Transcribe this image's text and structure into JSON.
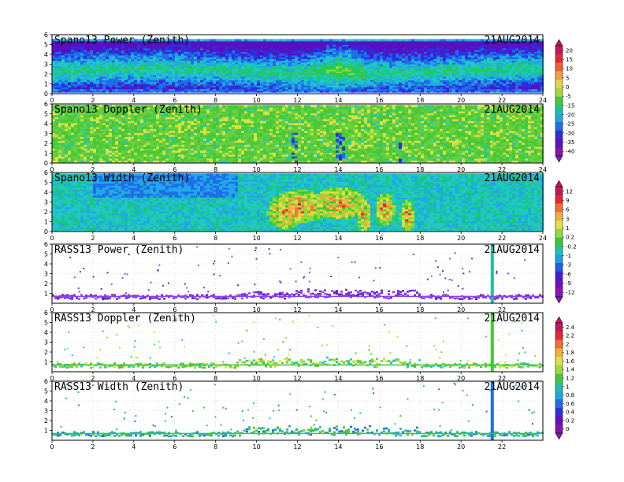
{
  "figure": {
    "date": "21AUG2014"
  },
  "chart_data": [
    {
      "type": "heatmap",
      "title": "Spano13 Power (Zenith)",
      "date_label": "21AUG2014",
      "x_ticks": [
        "0",
        "2",
        "4",
        "6",
        "8",
        "10",
        "12",
        "14",
        "16",
        "18",
        "20",
        "22",
        "24"
      ],
      "y_ticks": [
        "0",
        "1",
        "2",
        "3",
        "4",
        "5",
        "6"
      ],
      "xlim": [
        0,
        24
      ],
      "ylim": [
        0,
        6
      ],
      "colorbar": {
        "labels": [
          "20",
          "15",
          "10",
          "5",
          "0",
          "-5",
          "-15",
          "-20",
          "-25",
          "-30",
          "-35",
          "-40"
        ]
      },
      "summary": "Broad return across 0-5 km; strong band near 2 km throughout the day, peaks near 14 h"
    },
    {
      "type": "heatmap",
      "title": "Spano13 Doppler (Zenith)",
      "date_label": "21AUG2014",
      "x_ticks": [
        "0",
        "2",
        "4",
        "6",
        "8",
        "10",
        "12",
        "14",
        "16",
        "18",
        "20",
        "22",
        "24"
      ],
      "y_ticks": [
        "0",
        "1",
        "2",
        "3",
        "4",
        "5",
        "6"
      ],
      "xlim": [
        0,
        24
      ],
      "ylim": [
        0,
        6
      ],
      "summary": "Mostly near-zero (green) velocities with yellow streaks; negative streaks near 12, 14 and 17 h"
    },
    {
      "type": "heatmap",
      "title": "Spano13 Width (Zenith)",
      "date_label": "21AUG2014",
      "x_ticks": [
        "0",
        "2",
        "4",
        "6",
        "8",
        "10",
        "12",
        "14",
        "16",
        "18",
        "20",
        "22",
        "24"
      ],
      "y_ticks": [
        "0",
        "1",
        "2",
        "3",
        "4",
        "5",
        "6"
      ],
      "xlim": [
        0,
        24
      ],
      "ylim": [
        0,
        6
      ],
      "colorbar": {
        "labels": [
          "12",
          "9",
          "6",
          "3",
          "1",
          "0.2",
          "-0.2",
          "-1",
          "-3",
          "-6",
          "-9",
          "-12"
        ]
      },
      "summary": "Low width background; high-width convective cells between 10.5 and 17.5 h"
    },
    {
      "type": "scatter",
      "title": "RASS13 Power (Zenith)",
      "date_label": "21AUG2014",
      "x_ticks": [
        "0",
        "2",
        "4",
        "6",
        "8",
        "10",
        "12",
        "14",
        "16",
        "18",
        "20",
        "22"
      ],
      "y_ticks": [
        "1",
        "2",
        "3",
        "4",
        "5",
        "6"
      ],
      "xlim": [
        0,
        24
      ],
      "ylim": [
        0,
        6
      ],
      "summary": "Sparse returns concentrated near 0.5-1 km; vertical stripe near 21.5 h"
    },
    {
      "type": "scatter",
      "title": "RASS13 Doppler (Zenith)",
      "date_label": "21AUG2014",
      "x_ticks": [
        "0",
        "2",
        "4",
        "6",
        "8",
        "10",
        "12",
        "14",
        "16",
        "18",
        "20",
        "22"
      ],
      "y_ticks": [
        "1",
        "2",
        "3",
        "4",
        "5",
        "6"
      ],
      "xlim": [
        0,
        24
      ],
      "ylim": [
        0,
        6
      ],
      "colorbar": {
        "labels": [
          "2.4",
          "2.2",
          "2",
          "1.8",
          "1.6",
          "1.4",
          "1.2",
          "1",
          "0.8",
          "0.6",
          "0.4",
          "0.2",
          "0"
        ]
      },
      "summary": "Returns mostly below 1 km; vertical stripe near 21.5 h"
    },
    {
      "type": "scatter",
      "title": "RASS13 Width (Zenith)",
      "date_label": "21AUG2014",
      "x_ticks": [
        "0",
        "2",
        "4",
        "6",
        "8",
        "10",
        "12",
        "14",
        "16",
        "18",
        "20",
        "22"
      ],
      "y_ticks": [
        "1",
        "2",
        "3",
        "4",
        "5",
        "6"
      ],
      "xlim": [
        0,
        24
      ],
      "ylim": [
        0,
        6
      ],
      "summary": "Returns mostly below 1 km; vertical stripe near 21.5 h"
    }
  ]
}
